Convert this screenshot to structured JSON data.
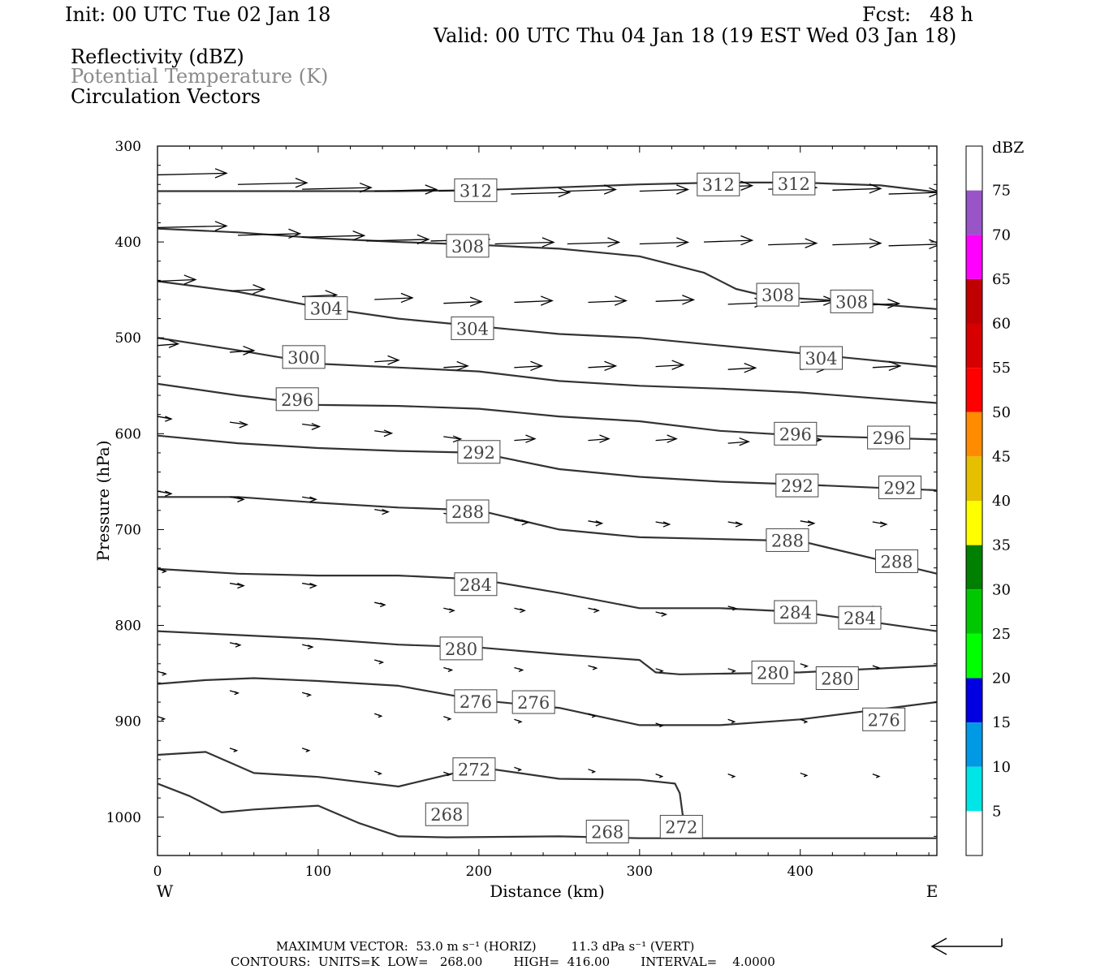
{
  "header": {
    "init": "Init: 00 UTC Tue 02 Jan 18",
    "fcst": "Fcst:   48 h",
    "valid": "Valid: 00 UTC Thu 04 Jan 18 (19 EST Wed 03 Jan 18)",
    "fields": [
      "Reflectivity (dBZ)",
      "Potential Temperature (K)",
      "Circulation Vectors"
    ]
  },
  "footer": {
    "max_vector": "MAXIMUM VECTOR:  53.0 m s⁻¹ (HORIZ)         11.3 dPa s⁻¹ (VERT)",
    "contours": "CONTOURS:  UNITS=K  LOW=   268.00        HIGH=  416.00        INTERVAL=    4.0000"
  },
  "chart_data": {
    "type": "line",
    "xlabel": "Distance (km)",
    "ylabel": "Pressure (hPa)",
    "xlim": [
      0,
      485
    ],
    "ylim": [
      300,
      1040
    ],
    "y_reversed": true,
    "x_ticks": [
      0,
      100,
      200,
      300,
      400
    ],
    "y_ticks": [
      300,
      400,
      500,
      600,
      700,
      800,
      900,
      1000
    ],
    "x_end_labels": {
      "left": "W",
      "right": "E"
    },
    "colorbar": {
      "unit": "dBZ",
      "levels": [
        5,
        10,
        15,
        20,
        25,
        30,
        35,
        40,
        45,
        50,
        55,
        60,
        65,
        70,
        75
      ],
      "colors": [
        "#ffffff",
        "#00e5e5",
        "#0099e5",
        "#0000e0",
        "#00ff00",
        "#00c800",
        "#008000",
        "#ffff00",
        "#e5bf00",
        "#ff8c00",
        "#ff0000",
        "#d60000",
        "#c00000",
        "#ff00ff",
        "#9955c8",
        "#ffffff"
      ]
    },
    "series": [
      {
        "name": "312",
        "x": [
          0,
          50,
          100,
          150,
          200,
          250,
          300,
          350,
          400,
          450,
          485
        ],
        "y": [
          347,
          347,
          347,
          347,
          346,
          343,
          340,
          338,
          338,
          341,
          348
        ],
        "labels_at": [
          [
            198,
            346
          ],
          [
            349,
            340
          ],
          [
            396,
            339
          ]
        ]
      },
      {
        "name": "308",
        "x": [
          0,
          50,
          100,
          150,
          200,
          250,
          300,
          340,
          360,
          380,
          420,
          485
        ],
        "y": [
          386,
          390,
          396,
          400,
          403,
          407,
          415,
          432,
          449,
          457,
          461,
          470
        ],
        "labels_at": [
          [
            193,
            404
          ],
          [
            386,
            455
          ],
          [
            432,
            462
          ]
        ]
      },
      {
        "name": "304",
        "x": [
          0,
          50,
          100,
          150,
          200,
          250,
          300,
          350,
          400,
          485
        ],
        "y": [
          441,
          452,
          468,
          480,
          488,
          496,
          500,
          508,
          516,
          530
        ],
        "labels_at": [
          [
            105,
            469
          ],
          [
            196,
            490
          ],
          [
            413,
            521
          ]
        ]
      },
      {
        "name": "300",
        "x": [
          0,
          50,
          100,
          150,
          200,
          250,
          300,
          350,
          400,
          485
        ],
        "y": [
          500,
          513,
          527,
          531,
          535,
          545,
          550,
          553,
          557,
          568
        ],
        "labels_at": [
          [
            91,
            520
          ]
        ]
      },
      {
        "name": "296",
        "x": [
          0,
          50,
          100,
          150,
          200,
          250,
          300,
          350,
          400,
          485
        ],
        "y": [
          548,
          560,
          570,
          571,
          574,
          582,
          587,
          597,
          602,
          606
        ],
        "labels_at": [
          [
            87,
            564
          ],
          [
            397,
            600
          ],
          [
            455,
            604
          ]
        ]
      },
      {
        "name": "292",
        "x": [
          0,
          50,
          100,
          150,
          200,
          250,
          300,
          350,
          400,
          485
        ],
        "y": [
          602,
          610,
          615,
          618,
          620,
          637,
          645,
          650,
          653,
          659
        ],
        "labels_at": [
          [
            200,
            619
          ],
          [
            398,
            654
          ],
          [
            462,
            656
          ]
        ]
      },
      {
        "name": "288",
        "x": [
          0,
          50,
          100,
          150,
          200,
          250,
          300,
          350,
          400,
          485
        ],
        "y": [
          666,
          666,
          672,
          677,
          680,
          700,
          708,
          710,
          712,
          746
        ],
        "labels_at": [
          [
            193,
            681
          ],
          [
            392,
            711
          ],
          [
            460,
            733
          ]
        ]
      },
      {
        "name": "284",
        "x": [
          0,
          50,
          100,
          150,
          200,
          250,
          300,
          350,
          400,
          485
        ],
        "y": [
          741,
          746,
          748,
          748,
          752,
          766,
          782,
          782,
          786,
          806
        ],
        "labels_at": [
          [
            198,
            757
          ],
          [
            397,
            786
          ],
          [
            437,
            792
          ]
        ]
      },
      {
        "name": "280",
        "x": [
          0,
          50,
          100,
          150,
          200,
          250,
          300,
          310,
          325,
          400,
          485
        ],
        "y": [
          806,
          810,
          814,
          820,
          823,
          830,
          836,
          849,
          851,
          849,
          842
        ],
        "labels_at": [
          [
            189,
            824
          ],
          [
            383,
            849
          ],
          [
            423,
            855
          ]
        ]
      },
      {
        "name": "276",
        "x": [
          0,
          30,
          60,
          100,
          150,
          200,
          250,
          300,
          350,
          400,
          485
        ],
        "y": [
          861,
          857,
          855,
          858,
          863,
          878,
          886,
          904,
          904,
          898,
          880
        ],
        "labels_at": [
          [
            198,
            879
          ],
          [
            234,
            880
          ],
          [
            452,
            898
          ]
        ]
      },
      {
        "name": "272",
        "x": [
          0,
          30,
          60,
          100,
          150,
          200,
          250,
          300,
          322,
          325,
          327
        ],
        "y": [
          935,
          932,
          954,
          958,
          968,
          948,
          960,
          961,
          965,
          975,
          1000
        ],
        "labels_at": [
          [
            197,
            950
          ],
          [
            326,
            1010
          ]
        ]
      },
      {
        "name": "268",
        "x": [
          0,
          20,
          40,
          60,
          80,
          100,
          125,
          150,
          180,
          250,
          300,
          400,
          485
        ],
        "y": [
          965,
          978,
          995,
          992,
          990,
          988,
          1006,
          1020,
          1021,
          1020,
          1022,
          1022,
          1022
        ],
        "labels_at": [
          [
            180,
            997
          ],
          [
            280,
            1015
          ]
        ]
      }
    ],
    "vectors": [
      [
        0,
        330,
        1
      ],
      [
        50,
        340,
        1
      ],
      [
        90,
        345,
        1
      ],
      [
        135,
        347,
        0.9
      ],
      [
        175,
        347,
        0.85
      ],
      [
        220,
        350,
        0.85
      ],
      [
        255,
        347,
        0.7
      ],
      [
        300,
        347,
        0.7
      ],
      [
        340,
        343,
        0.7
      ],
      [
        380,
        345,
        0.7
      ],
      [
        420,
        346,
        0.7
      ],
      [
        455,
        350,
        0.75
      ],
      [
        0,
        385,
        1
      ],
      [
        50,
        393,
        0.9
      ],
      [
        90,
        395,
        0.9
      ],
      [
        130,
        399,
        0.9
      ],
      [
        170,
        399,
        0.85
      ],
      [
        210,
        402,
        0.85
      ],
      [
        255,
        402,
        0.75
      ],
      [
        300,
        402,
        0.7
      ],
      [
        340,
        400,
        0.7
      ],
      [
        380,
        403,
        0.7
      ],
      [
        420,
        403,
        0.7
      ],
      [
        455,
        404,
        0.75
      ],
      [
        0,
        441,
        0.55
      ],
      [
        45,
        451,
        0.5
      ],
      [
        90,
        457,
        0.5
      ],
      [
        135,
        460,
        0.55
      ],
      [
        178,
        464,
        0.55
      ],
      [
        222,
        463,
        0.55
      ],
      [
        268,
        463,
        0.55
      ],
      [
        310,
        462,
        0.55
      ],
      [
        355,
        465,
        0.55
      ],
      [
        400,
        463,
        0.5
      ],
      [
        440,
        466,
        0.5
      ],
      [
        0,
        508,
        0.3
      ],
      [
        45,
        515,
        0.35
      ],
      [
        90,
        521,
        0.3
      ],
      [
        135,
        525,
        0.35
      ],
      [
        178,
        531,
        0.35
      ],
      [
        222,
        531,
        0.4
      ],
      [
        268,
        531,
        0.4
      ],
      [
        310,
        530,
        0.4
      ],
      [
        355,
        533,
        0.4
      ],
      [
        400,
        533,
        0.4
      ],
      [
        445,
        531,
        0.4
      ],
      [
        0,
        582,
        0.2
      ],
      [
        45,
        588,
        0.25
      ],
      [
        90,
        590,
        0.25
      ],
      [
        135,
        597,
        0.25
      ],
      [
        178,
        603,
        0.25
      ],
      [
        222,
        607,
        0.3
      ],
      [
        268,
        607,
        0.3
      ],
      [
        310,
        607,
        0.3
      ],
      [
        355,
        610,
        0.3
      ],
      [
        400,
        608,
        0.3
      ],
      [
        445,
        607,
        0.3
      ],
      [
        0,
        660,
        0.2
      ],
      [
        45,
        666,
        0.2
      ],
      [
        90,
        666,
        0.2
      ],
      [
        135,
        679,
        0.2
      ],
      [
        178,
        683,
        0.2
      ],
      [
        222,
        690,
        0.2
      ],
      [
        268,
        691,
        0.2
      ],
      [
        310,
        692,
        0.2
      ],
      [
        355,
        692,
        0.2
      ],
      [
        400,
        691,
        0.2
      ],
      [
        445,
        692,
        0.2
      ],
      [
        0,
        741,
        0.12
      ],
      [
        45,
        756,
        0.2
      ],
      [
        90,
        756,
        0.2
      ],
      [
        135,
        776,
        0.15
      ],
      [
        178,
        782,
        0.15
      ],
      [
        222,
        782,
        0.15
      ],
      [
        268,
        782,
        0.15
      ],
      [
        310,
        786,
        0.15
      ],
      [
        355,
        780,
        0.12
      ],
      [
        400,
        779,
        0.12
      ],
      [
        445,
        780,
        0.12
      ],
      [
        0,
        848,
        0.12
      ],
      [
        45,
        818,
        0.15
      ],
      [
        90,
        820,
        0.15
      ],
      [
        135,
        836,
        0.12
      ],
      [
        178,
        844,
        0.12
      ],
      [
        222,
        844,
        0.12
      ],
      [
        268,
        842,
        0.12
      ],
      [
        310,
        845,
        0.1
      ],
      [
        355,
        845,
        0.1
      ],
      [
        400,
        840,
        0.1
      ],
      [
        445,
        842,
        0.1
      ],
      [
        0,
        895,
        0.1
      ],
      [
        45,
        868,
        0.12
      ],
      [
        90,
        870,
        0.12
      ],
      [
        135,
        892,
        0.1
      ],
      [
        178,
        895,
        0.1
      ],
      [
        222,
        898,
        0.1
      ],
      [
        268,
        892,
        0.1
      ],
      [
        310,
        902,
        0.1
      ],
      [
        355,
        898,
        0.08
      ],
      [
        400,
        898,
        0.08
      ],
      [
        445,
        898,
        0.08
      ],
      [
        45,
        928,
        0.1
      ],
      [
        90,
        928,
        0.1
      ],
      [
        135,
        952,
        0.08
      ],
      [
        178,
        953,
        0.08
      ],
      [
        222,
        948,
        0.08
      ],
      [
        268,
        950,
        0.08
      ],
      [
        310,
        955,
        0.08
      ],
      [
        355,
        955,
        0.06
      ],
      [
        400,
        954,
        0.08
      ],
      [
        445,
        955,
        0.08
      ]
    ]
  }
}
